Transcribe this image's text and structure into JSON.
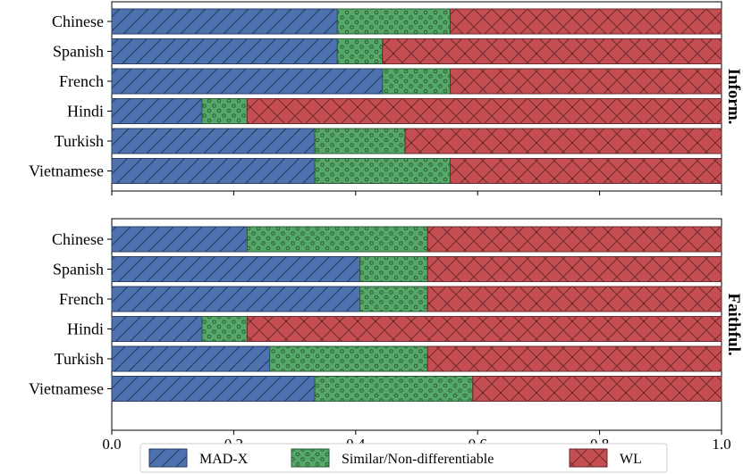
{
  "chart_data": {
    "type": "bar",
    "orientation": "horizontal",
    "stacked": true,
    "xlim": [
      0,
      1
    ],
    "x_ticks": [
      "0.0",
      "0.2",
      "0.4",
      "0.6",
      "0.8",
      "1.0"
    ],
    "x_tick_values": [
      0,
      0.2,
      0.4,
      0.6,
      0.8,
      1.0
    ],
    "legend": {
      "placement": "bottom-center",
      "entries": [
        {
          "name": "MAD-X",
          "color": "#4c72b0",
          "pattern": "hatch-diagonal"
        },
        {
          "name": "Similar/Non-differentiable",
          "color": "#55a868",
          "pattern": "dots"
        },
        {
          "name": "WL",
          "color": "#c44e52",
          "pattern": "cross-hatch"
        }
      ]
    },
    "panels": [
      {
        "facet_label": "Inform.",
        "categories": [
          "Chinese",
          "Spanish",
          "French",
          "Hindi",
          "Turkish",
          "Vietnamese"
        ],
        "series": [
          {
            "name": "MAD-X",
            "values": [
              0.37,
              0.37,
              0.444,
              0.148,
              0.333,
              0.333
            ]
          },
          {
            "name": "Similar/Non-differentiable",
            "values": [
              0.185,
              0.074,
              0.111,
              0.074,
              0.148,
              0.222
            ]
          },
          {
            "name": "WL",
            "values": [
              0.445,
              0.556,
              0.445,
              0.778,
              0.519,
              0.445
            ]
          }
        ]
      },
      {
        "facet_label": "Faithful.",
        "categories": [
          "Chinese",
          "Spanish",
          "French",
          "Hindi",
          "Turkish",
          "Vietnamese"
        ],
        "series": [
          {
            "name": "MAD-X",
            "values": [
              0.222,
              0.407,
              0.407,
              0.148,
              0.259,
              0.333
            ]
          },
          {
            "name": "Similar/Non-differentiable",
            "values": [
              0.296,
              0.111,
              0.111,
              0.074,
              0.259,
              0.259
            ]
          },
          {
            "name": "WL",
            "values": [
              0.482,
              0.482,
              0.482,
              0.778,
              0.482,
              0.408
            ]
          }
        ]
      }
    ]
  }
}
